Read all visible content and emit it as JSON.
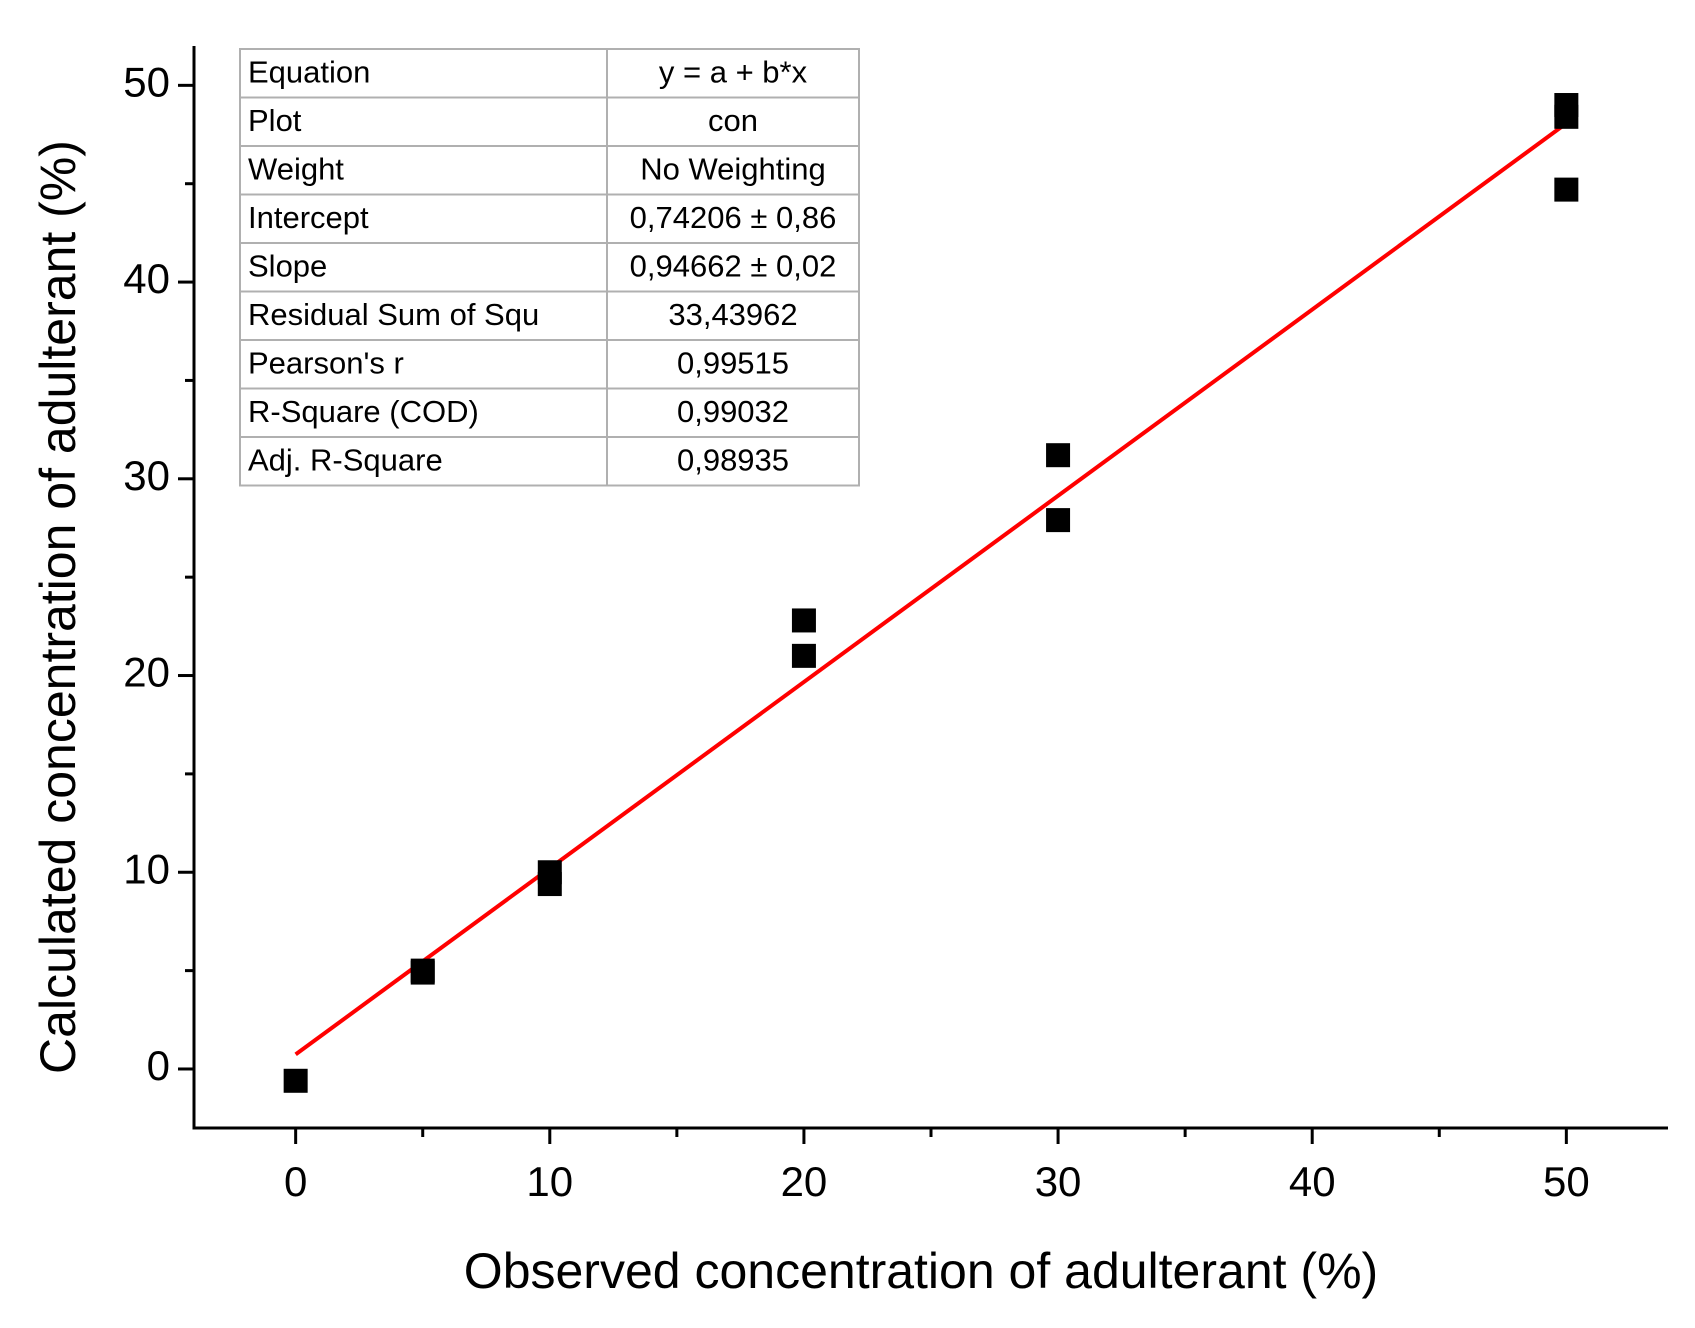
{
  "chart_data": {
    "type": "scatter",
    "x_label": "Observed concentration of adulterant (%)",
    "y_label": "Calculated concentration of adulterant (%)",
    "xlim": [
      -4,
      54
    ],
    "ylim": [
      -3,
      52
    ],
    "xticks": [
      0,
      10,
      20,
      30,
      40,
      50
    ],
    "yticks": [
      0,
      10,
      20,
      30,
      40,
      50
    ],
    "xminorticks": [
      5,
      15,
      25,
      35,
      45
    ],
    "yminorticks": [
      5,
      15,
      25,
      35,
      45
    ],
    "series": [
      {
        "color": "#000000",
        "x": [
          0,
          5,
          5,
          10,
          10,
          20,
          20,
          30,
          30,
          50,
          50,
          50
        ],
        "values": [
          -0.6,
          4.9,
          5.0,
          10.0,
          9.4,
          22.8,
          21.0,
          31.2,
          27.9,
          49.0,
          48.4,
          44.7
        ]
      }
    ],
    "fit_line": {
      "color": "#ff0000",
      "x": [
        0,
        50
      ],
      "values": [
        0.74,
        48.07
      ]
    },
    "table": {
      "rows": [
        [
          "Equation",
          "y = a + b*x"
        ],
        [
          "Plot",
          "con"
        ],
        [
          "Weight",
          "No Weighting"
        ],
        [
          "Intercept",
          "0,74206 ± 0,86"
        ],
        [
          "Slope",
          "0,94662 ± 0,02"
        ],
        [
          "Residual Sum of Squ",
          "33,43962"
        ],
        [
          "Pearson's r",
          "0,99515"
        ],
        [
          "R-Square (COD)",
          "0,99032"
        ],
        [
          "Adj. R-Square",
          "0,98935"
        ]
      ]
    }
  }
}
